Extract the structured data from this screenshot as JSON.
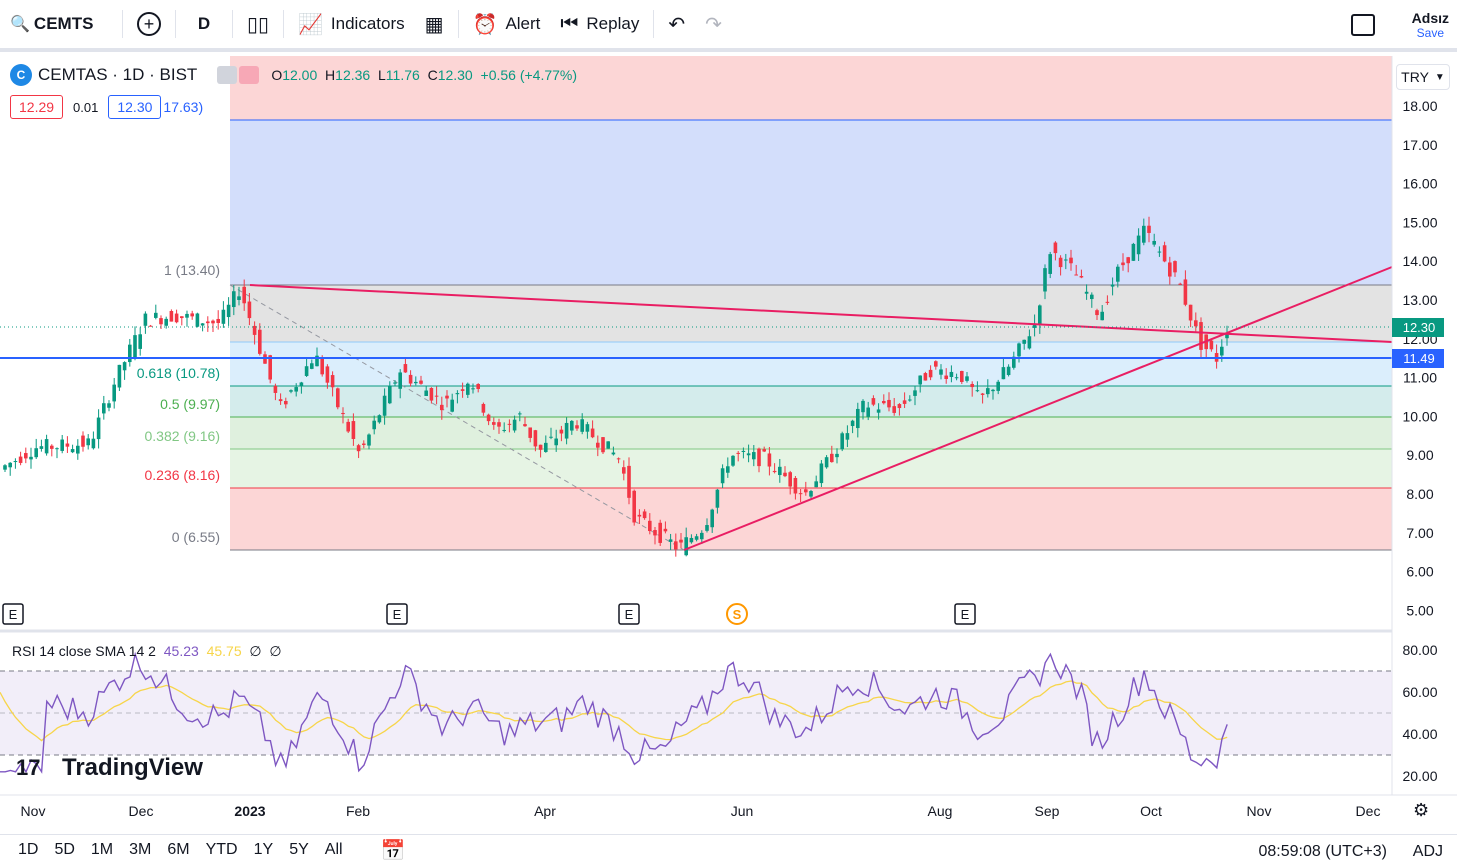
{
  "toolbar": {
    "symbol": "CEMTS",
    "interval": "D",
    "indicators": "Indicators",
    "alert": "Alert",
    "replay": "Replay",
    "save_name": "Adsız",
    "save_label": "Save"
  },
  "legend": {
    "title": "CEMTAS · 1D · BIST",
    "open_label": "O",
    "open": "12.00",
    "high_label": "H",
    "high": "12.36",
    "low_label": "L",
    "low": "11.76",
    "close_label": "C",
    "close": "12.30",
    "change": "+0.56 (+4.77%)",
    "bid": "12.29",
    "spread": "0.01",
    "ask": "12.30",
    "extra": "17.63)"
  },
  "currency": "TRY",
  "price_axis": [
    "18.00",
    "17.00",
    "16.00",
    "15.00",
    "14.00",
    "13.00",
    "12.00",
    "11.00",
    "10.00",
    "9.00",
    "8.00",
    "7.00",
    "6.00",
    "5.00"
  ],
  "price_tags": {
    "last": "12.30",
    "line": "11.49"
  },
  "fib_labels": [
    {
      "label": "1 (13.40)",
      "color": "#787b86"
    },
    {
      "label": "0.618 (10.78)",
      "color": "#089981"
    },
    {
      "label": "0.5 (9.97)",
      "color": "#4caf50"
    },
    {
      "label": "0.382 (9.16)",
      "color": "#81c784"
    },
    {
      "label": "0.236 (8.16)",
      "color": "#f23645"
    },
    {
      "label": "0 (6.55)",
      "color": "#787b86"
    }
  ],
  "events": [
    "E",
    "E",
    "E",
    "S",
    "E"
  ],
  "rsi": {
    "title": "RSI 14 close SMA 14 2",
    "value": "45.23",
    "sma": "45.75",
    "v3": "∅",
    "v4": "∅",
    "axis": [
      "80.00",
      "60.00",
      "40.00",
      "20.00"
    ]
  },
  "time_axis": [
    "Nov",
    "Dec",
    "2023",
    "Feb",
    "Apr",
    "Jun",
    "Aug",
    "Sep",
    "Oct",
    "Nov",
    "Dec"
  ],
  "brand": "TradingView",
  "ranges": [
    "1D",
    "5D",
    "1M",
    "3M",
    "6M",
    "YTD",
    "1Y",
    "5Y",
    "All"
  ],
  "clock": "08:59:08 (UTC+3)",
  "adj": "ADJ",
  "colors": {
    "up": "#089981",
    "down": "#f23645",
    "trend": "#e91e63",
    "blueline": "#2962ff"
  }
}
